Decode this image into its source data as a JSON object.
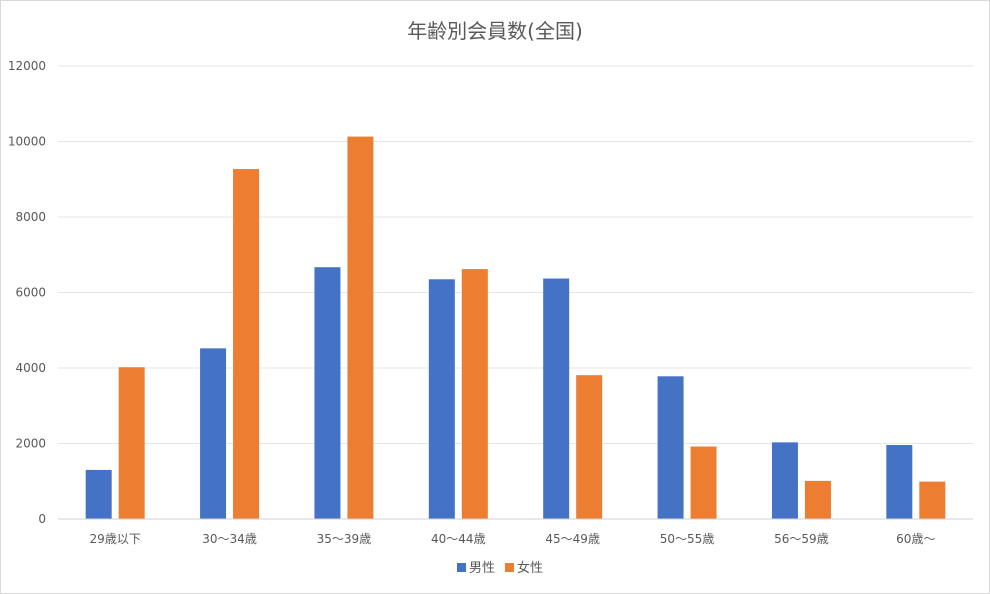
{
  "chart_data": {
    "type": "bar",
    "title": "年齢別会員数(全国)",
    "xlabel": "",
    "ylabel": "",
    "ylim": [
      0,
      12000
    ],
    "yticks": [
      0,
      2000,
      4000,
      6000,
      8000,
      10000,
      12000
    ],
    "grid": true,
    "legend_position": "bottom",
    "categories": [
      "29歳以下",
      "30〜34歳",
      "35〜39歳",
      "40〜44歳",
      "45〜49歳",
      "50〜55歳",
      "56〜59歳",
      "60歳〜"
    ],
    "series": [
      {
        "name": "男性",
        "color": "#4472C4",
        "values": [
          1300,
          4520,
          6670,
          6350,
          6370,
          3780,
          2030,
          1960
        ]
      },
      {
        "name": "女性",
        "color": "#ED7D31",
        "values": [
          4020,
          9270,
          10130,
          6620,
          3810,
          1920,
          1010,
          990
        ]
      }
    ]
  }
}
